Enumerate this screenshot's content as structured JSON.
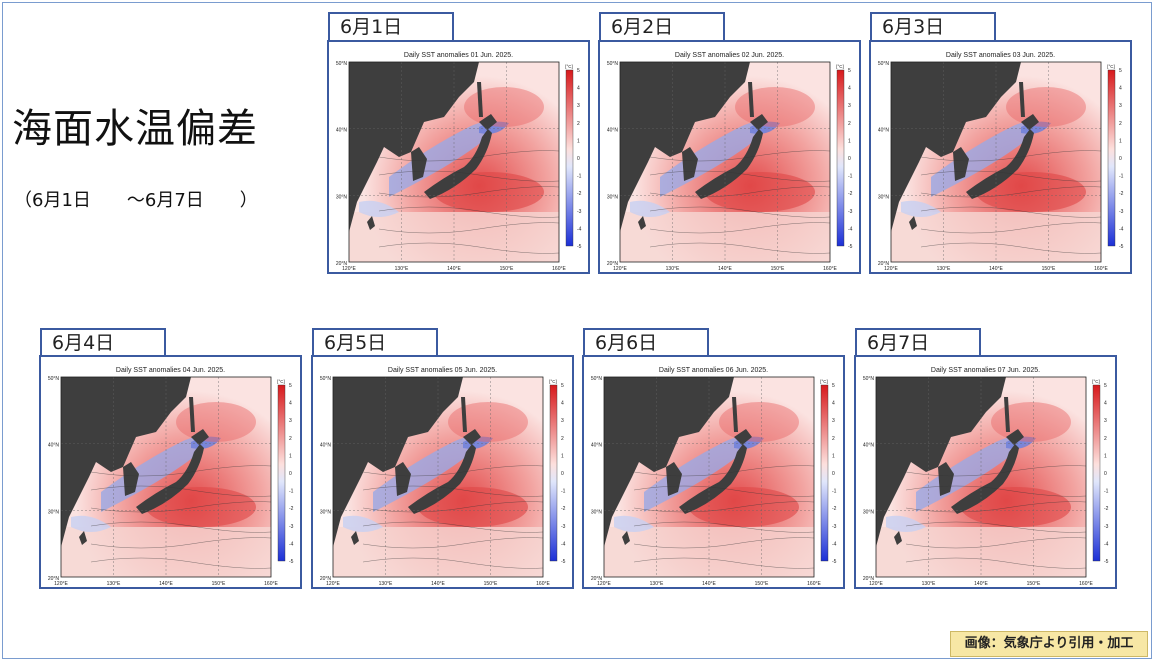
{
  "page": {
    "title": "海面水温偏差",
    "subtitle": "（6月1日　　～6月7日　　）",
    "credit": "画像：気象庁より引用・加工"
  },
  "colors": {
    "panel_border": "#3b5aa0",
    "warm": "#e8595a",
    "cool": "#5a6fd6",
    "land": "#3e3e3e",
    "credit_bg": "#f7e7a5"
  },
  "panels": [
    {
      "tab": "6月1日",
      "map_title": "Daily SST anomalies 01 Jun. 2025."
    },
    {
      "tab": "6月2日",
      "map_title": "Daily SST anomalies 02 Jun. 2025."
    },
    {
      "tab": "6月3日",
      "map_title": "Daily SST anomalies 03 Jun. 2025."
    },
    {
      "tab": "6月4日",
      "map_title": "Daily SST anomalies 04 Jun. 2025."
    },
    {
      "tab": "6月5日",
      "map_title": "Daily SST anomalies 05 Jun. 2025."
    },
    {
      "tab": "6月6日",
      "map_title": "Daily SST anomalies 06 Jun. 2025."
    },
    {
      "tab": "6月7日",
      "map_title": "Daily SST anomalies 07 Jun. 2025."
    }
  ],
  "map_axes": {
    "lat_labels": [
      "50°N",
      "40°N",
      "30°N",
      "20°N"
    ],
    "lon_labels": [
      "120°E",
      "130°E",
      "140°E",
      "150°E",
      "160°E"
    ],
    "colorbar_unit": "[°C]",
    "colorbar_ticks": [
      "5",
      "4",
      "3",
      "2",
      "1",
      "0",
      "-1",
      "-2",
      "-3",
      "-4",
      "-5"
    ]
  }
}
